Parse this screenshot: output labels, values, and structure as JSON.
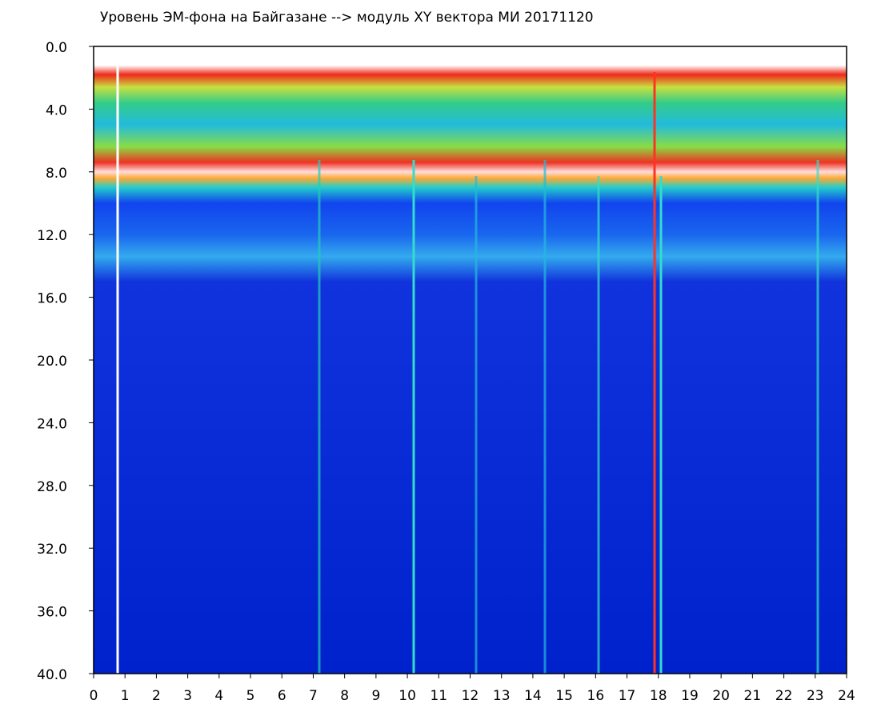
{
  "chart_data": {
    "type": "heatmap",
    "title": "Уровень ЭМ-фона на Байгазане   -->  модуль XY вектора МИ   20171120",
    "xlim": [
      0,
      24
    ],
    "xticks": [
      0,
      1,
      2,
      3,
      4,
      5,
      6,
      7,
      8,
      9,
      10,
      11,
      12,
      13,
      14,
      15,
      16,
      17,
      18,
      19,
      20,
      21,
      22,
      23,
      24
    ],
    "ylim": [
      0,
      40
    ],
    "y_inverted": true,
    "yticks": [
      {
        "value": 0,
        "label": "0.0"
      },
      {
        "value": 4,
        "label": "4.0"
      },
      {
        "value": 8,
        "label": "8.0"
      },
      {
        "value": 12,
        "label": "12.0"
      },
      {
        "value": 16,
        "label": "16.0"
      },
      {
        "value": 20,
        "label": "20.0"
      },
      {
        "value": 24,
        "label": "24.0"
      },
      {
        "value": 28,
        "label": "28.0"
      },
      {
        "value": 32,
        "label": "32.0"
      },
      {
        "value": 36,
        "label": "36.0"
      },
      {
        "value": 40,
        "label": "40.0"
      }
    ]
  }
}
